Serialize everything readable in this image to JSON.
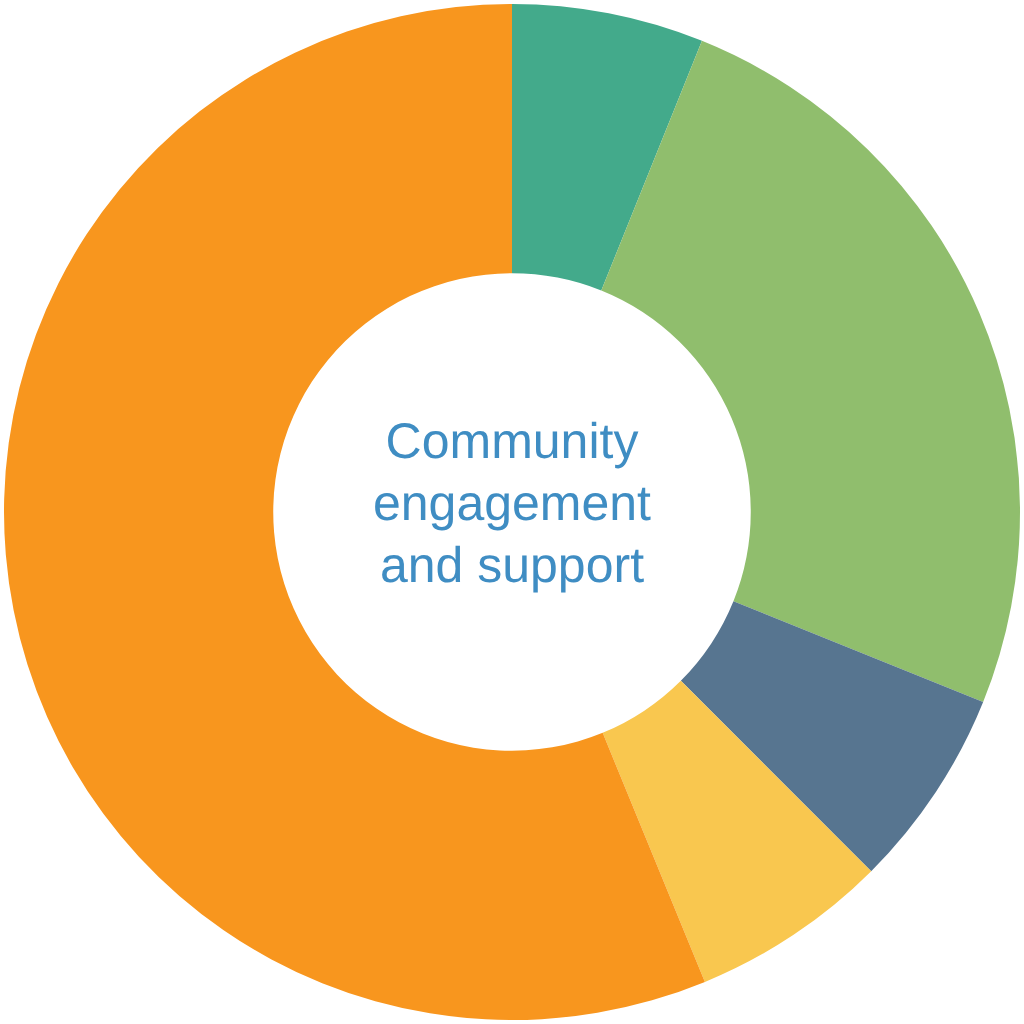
{
  "chart_data": {
    "type": "donut",
    "title": "Community engagement and support",
    "categories": [
      null,
      null,
      null,
      null,
      null
    ],
    "values": [
      6.1,
      25,
      6.4,
      6.3,
      56.2
    ],
    "colors": [
      "#43aa8b",
      "#90be6d",
      "#577590",
      "#f9c74f",
      "#f8961e"
    ]
  }
}
